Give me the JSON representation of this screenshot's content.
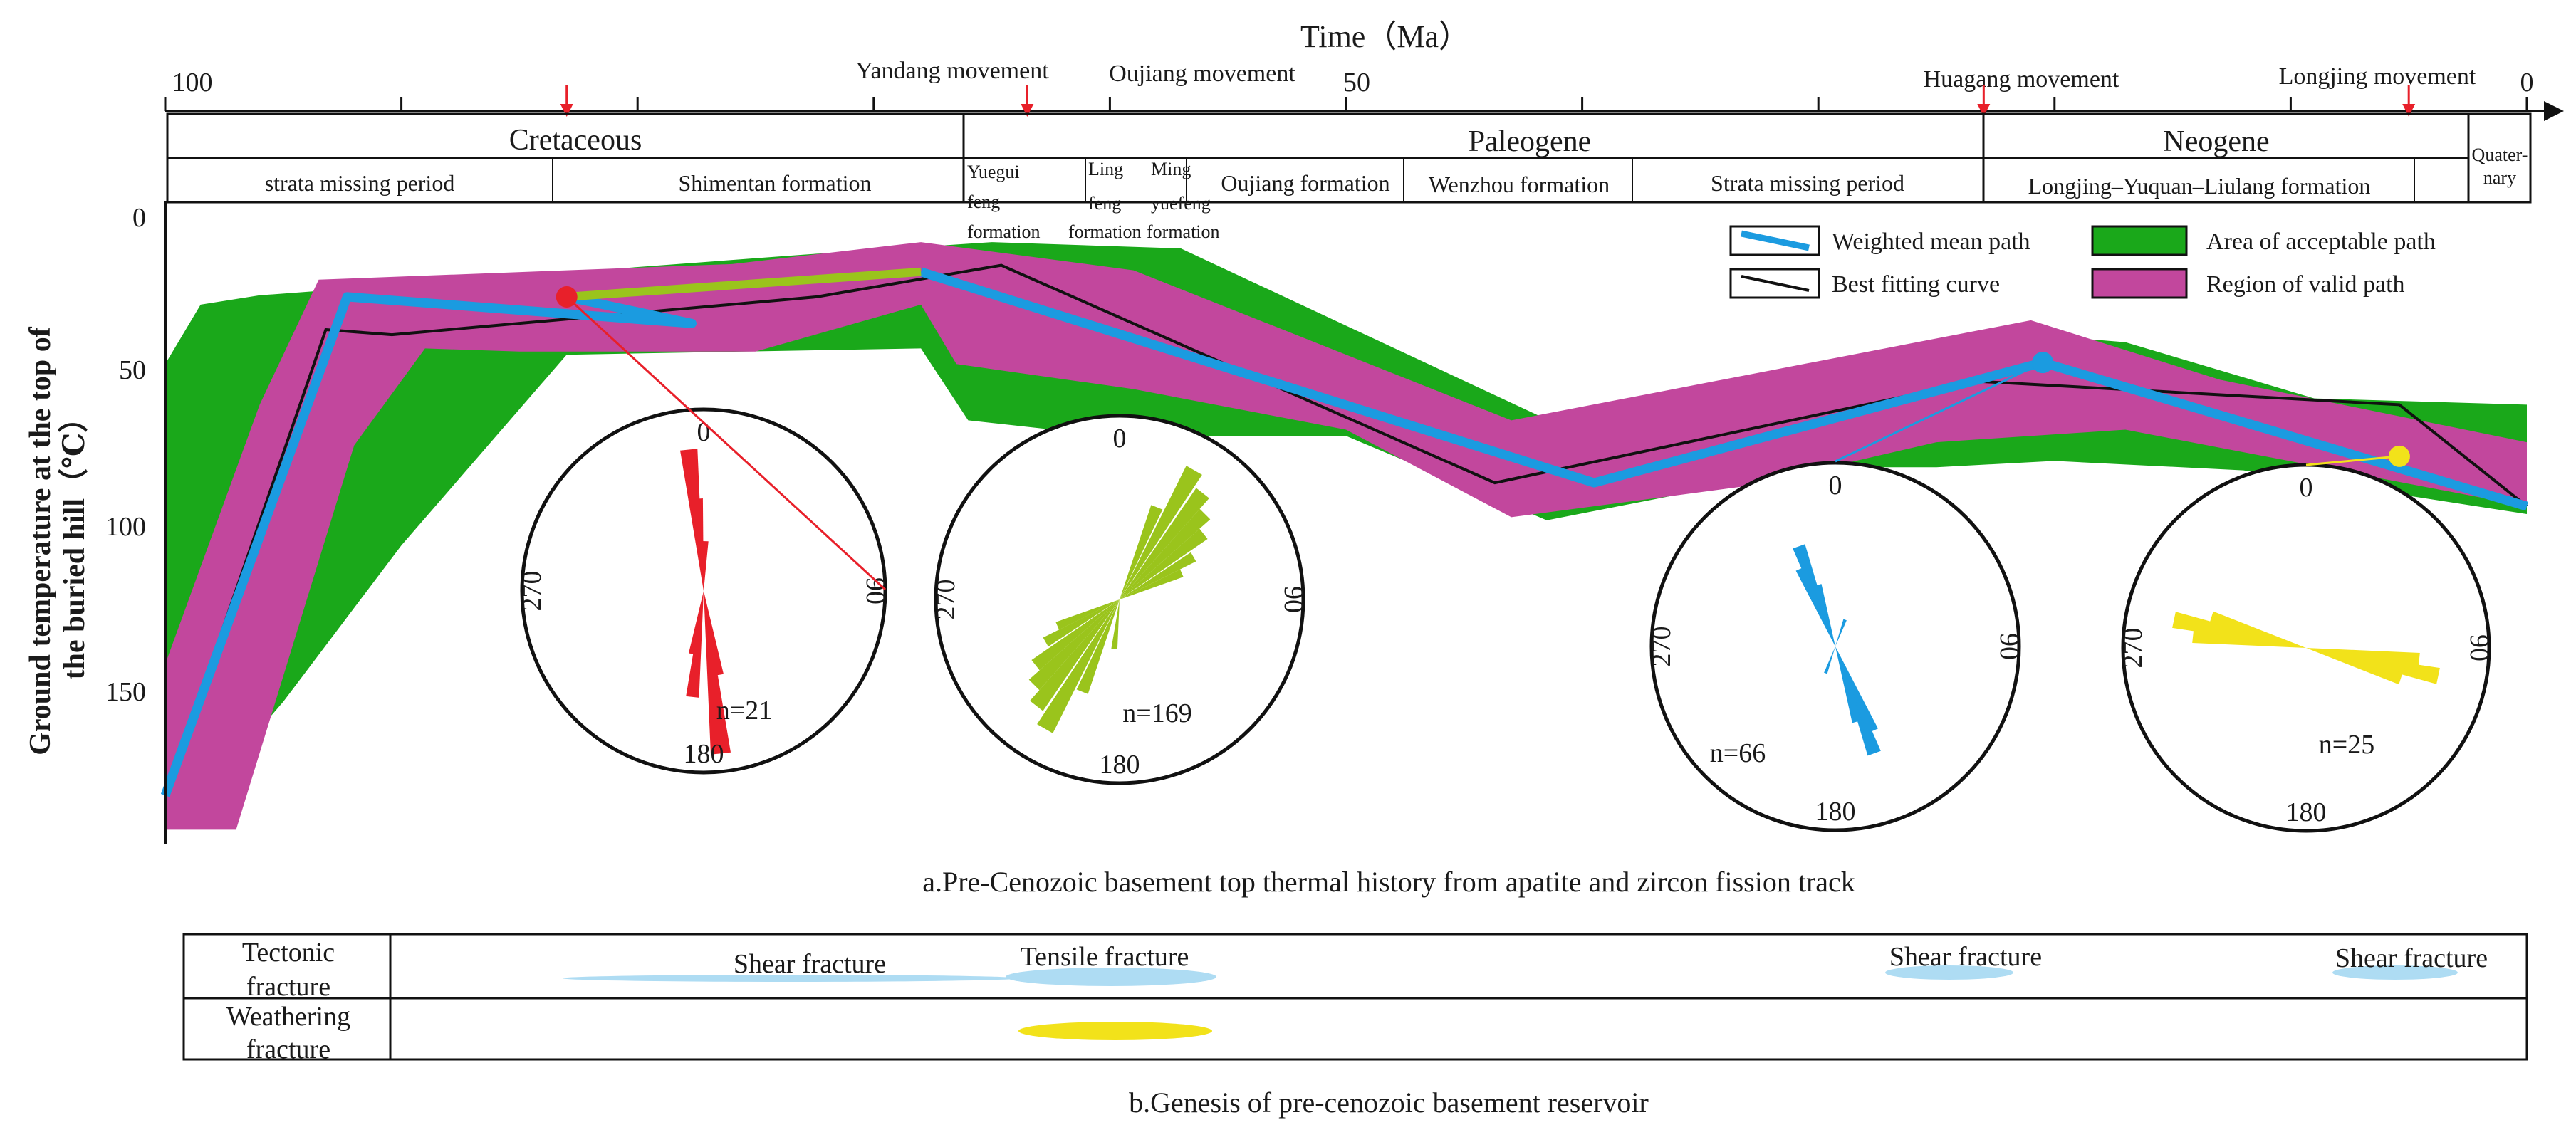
{
  "axis": {
    "time_label": "Time（Ma）",
    "x_ticks": [
      {
        "value": 100,
        "label": "100"
      },
      {
        "value": 50,
        "label": "50"
      },
      {
        "value": 0,
        "label": "0"
      }
    ],
    "y_label_line1": "Ground temperature at the top of",
    "y_label_line2": "the buried hill（℃）",
    "y_ticks": [
      {
        "value": 0,
        "label": "0"
      },
      {
        "value": 50,
        "label": "50"
      },
      {
        "value": 100,
        "label": "100"
      },
      {
        "value": 150,
        "label": "150"
      }
    ]
  },
  "movements": [
    {
      "name": "Yandang movement",
      "age": 83
    },
    {
      "name": "Oujiang movement",
      "age": 63.5
    },
    {
      "name": "Huagang movement",
      "age": 23
    },
    {
      "name": "Longjing movement",
      "age": 5
    }
  ],
  "periods": [
    "Cretaceous",
    "Paleogene",
    "Neogene",
    "Quater-",
    "nary"
  ],
  "formations": {
    "strata_missing": "strata  missing  period",
    "shimentan": "Shimentan  formation",
    "yuegui": [
      "Yuegui",
      "feng",
      "formation"
    ],
    "lingfeng": [
      "Ling",
      "feng",
      "formation"
    ],
    "mingyue": [
      "Ming",
      "yuefeng",
      "formation"
    ],
    "oujiang": "Oujiang  formation",
    "wenzhou": "Wenzhou  formation",
    "strata_missing2": "Strata  missing period",
    "longjing": "Longjing–Yuquan–Liulang formation"
  },
  "legend": {
    "weighted": "Weighted mean path",
    "best": "Best fitting  curve",
    "acceptable": "Area of acceptable path",
    "valid": "Region of valid path"
  },
  "colors": {
    "acceptable": "#1aa81a",
    "valid": "#c2479d",
    "weighted": "#1b9be0",
    "best": "#111111",
    "red": "#e8202a",
    "green": "#9ac41c",
    "yellow": "#f2e21a",
    "lightblue": "#aedcf3"
  },
  "chart_data": {
    "type": "line",
    "title": "a.Pre-Cenozoic basement top thermal history from apatite and zircon fission track",
    "xlabel": "Time（Ma）",
    "ylabel": "Ground temperature at the top of the buried hill（℃）",
    "xlim": [
      100,
      0
    ],
    "ylim": [
      0,
      200
    ],
    "series": [
      {
        "name": "Weighted mean path",
        "x": [
          100,
          92.3,
          77.7,
          83,
          68,
          39.5,
          20.5,
          0
        ],
        "y": [
          185,
          25.5,
          34,
          25.5,
          17.5,
          85,
          46.5,
          92.5
        ]
      },
      {
        "name": "Best fitting curve",
        "x": [
          100,
          93.2,
          90.4,
          72.4,
          64.6,
          43.7,
          23.3,
          5.4,
          0
        ],
        "y": [
          185,
          36,
          37.6,
          25.5,
          15.4,
          85,
          52.5,
          60,
          92.5
        ]
      },
      {
        "name": "Area of acceptable path",
        "upper_x": [
          100,
          98.5,
          96,
          73,
          65,
          57,
          40,
          28,
          22,
          17,
          9,
          0
        ],
        "upper_y": [
          47,
          28,
          25,
          12,
          8,
          10,
          70,
          47,
          37,
          40,
          58,
          60
        ],
        "lower_x": [
          100,
          99,
          95,
          90,
          83,
          68,
          66,
          60,
          50,
          41.5,
          30,
          25,
          20,
          12,
          0
        ],
        "lower_y": [
          190,
          190,
          155,
          105,
          44,
          42,
          65,
          70,
          70,
          97,
          80,
          80,
          78,
          81,
          95
        ]
      },
      {
        "name": "Region of valid path",
        "upper_x": [
          100,
          96,
          93.5,
          76,
          68,
          59,
          43,
          32,
          21,
          13,
          0
        ],
        "upper_y": [
          143,
          60,
          20,
          15,
          8,
          17,
          65,
          49,
          33,
          52,
          72
        ],
        "lower_x": [
          100,
          97,
          92,
          89,
          85,
          75,
          68,
          66.5,
          59,
          50,
          43,
          33,
          25,
          17,
          0
        ],
        "lower_y": [
          196,
          196,
          73,
          42,
          43,
          43,
          28,
          47,
          55,
          68,
          96,
          86,
          72,
          68,
          92.5
        ]
      }
    ],
    "rose_diagrams": [
      {
        "n_label": "n=21",
        "color": "#e8202a",
        "labels": [
          "0",
          "90",
          "180",
          "270"
        ]
      },
      {
        "n_label": "n=169",
        "color": "#9ac41c",
        "labels": [
          "0",
          "90",
          "180",
          "270"
        ]
      },
      {
        "n_label": "n=66",
        "color": "#1b9be0",
        "labels": [
          "0",
          "90",
          "180",
          "270"
        ]
      },
      {
        "n_label": "n=25",
        "color": "#f2e21a",
        "labels": [
          "0",
          "90",
          "180",
          "270"
        ]
      }
    ]
  },
  "section_b": {
    "caption": "b.Genesis of pre-cenozoic basement reservoir",
    "rows": [
      {
        "label_line1": "Tectonic",
        "label_line2": "fracture"
      },
      {
        "label_line1": "Weathering",
        "label_line2": "fracture"
      }
    ],
    "labels": {
      "shear1": "Shear  fracture",
      "tensile": "Tensile  fracture",
      "shear2": "Shear  fracture",
      "shear3": "Shear  fracture"
    }
  }
}
